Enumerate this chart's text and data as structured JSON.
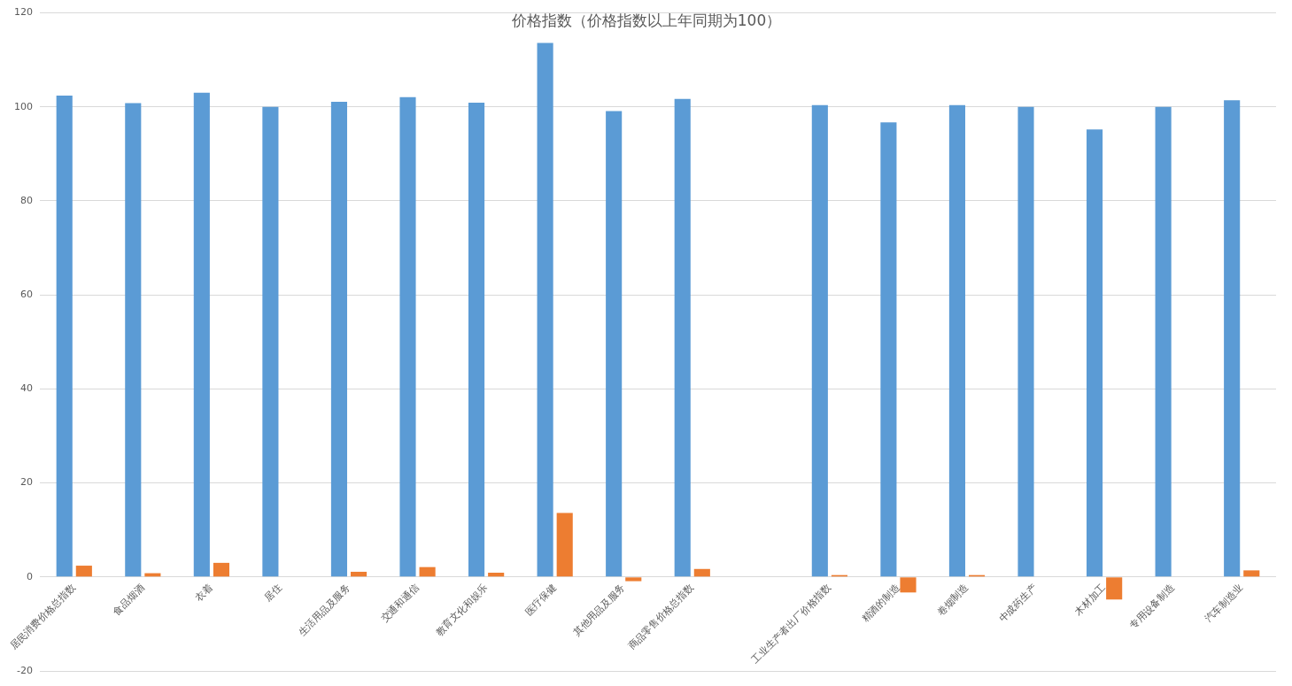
{
  "chart_data": {
    "type": "bar",
    "title": "价格指数（价格指数以上年同期为100）",
    "categories": [
      "居民消费价格总指数",
      "食品烟酒",
      "衣着",
      "居住",
      "生活用品及服务",
      "交通和通信",
      "教育文化和娱乐",
      "医疗保健",
      "其他用品及服务",
      "商品零售价格总指数",
      null,
      "工业生产者出厂价格指数",
      "精酒的制造",
      "卷烟制造",
      "中成药生产",
      "木材加工",
      "专用设备制造",
      "汽车制造业"
    ],
    "series": [
      {
        "color": "#5b9bd5",
        "values": [
          102.4,
          100.8,
          103.0,
          100.0,
          101.1,
          102.1,
          100.9,
          113.6,
          99.1,
          101.7,
          null,
          100.4,
          96.7,
          100.4,
          100.0,
          95.2,
          100.0,
          101.4
        ]
      },
      {
        "color": "#ed7d31",
        "values": [
          2.4,
          0.8,
          3.0,
          0,
          1.1,
          2.1,
          0.9,
          13.6,
          -0.9,
          1.7,
          null,
          0.4,
          -3.3,
          0.4,
          0,
          -4.8,
          0,
          1.4
        ]
      }
    ],
    "ylim": [
      -20,
      120
    ],
    "yticks": [
      -20,
      0,
      20,
      40,
      60,
      80,
      100,
      120
    ],
    "grid": "y"
  }
}
